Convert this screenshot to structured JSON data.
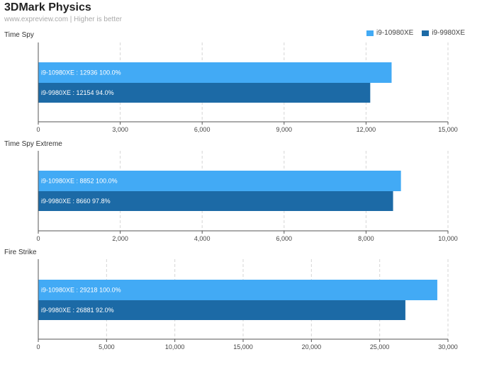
{
  "header": {
    "title": "3DMark Physics",
    "subtitle": "www.expreview.com | Higher is better"
  },
  "colors": {
    "series1": "#42aaf5",
    "series2": "#1c6aa6",
    "grid": "#d6d6d6",
    "axis": "#555555"
  },
  "legend": [
    {
      "label": "i9-10980XE",
      "color": "#42aaf5"
    },
    {
      "label": "i9-9980XE",
      "color": "#1c6aa6"
    }
  ],
  "chart_data": [
    {
      "type": "bar",
      "orientation": "horizontal",
      "title": "Time Spy",
      "xlim": [
        0,
        15000
      ],
      "ticks": [
        "0",
        "3,000",
        "6,000",
        "9,000",
        "12,000",
        "15,000"
      ],
      "tick_values": [
        0,
        3000,
        6000,
        9000,
        12000,
        15000
      ],
      "series": [
        {
          "name": "i9-10980XE",
          "value": 12936,
          "label": "i9-10980XE : 12936  100.0%"
        },
        {
          "name": "i9-9980XE",
          "value": 12154,
          "label": "i9-9980XE : 12154  94.0%"
        }
      ]
    },
    {
      "type": "bar",
      "orientation": "horizontal",
      "title": "Time Spy Extreme",
      "xlim": [
        0,
        10000
      ],
      "ticks": [
        "0",
        "2,000",
        "4,000",
        "6,000",
        "8,000",
        "10,000"
      ],
      "tick_values": [
        0,
        2000,
        4000,
        6000,
        8000,
        10000
      ],
      "series": [
        {
          "name": "i9-10980XE",
          "value": 8852,
          "label": "i9-10980XE : 8852  100.0%"
        },
        {
          "name": "i9-9980XE",
          "value": 8660,
          "label": "i9-9980XE : 8660  97.8%"
        }
      ]
    },
    {
      "type": "bar",
      "orientation": "horizontal",
      "title": "Fire Strike",
      "xlim": [
        0,
        30000
      ],
      "ticks": [
        "0",
        "5,000",
        "10,000",
        "15,000",
        "20,000",
        "25,000",
        "30,000"
      ],
      "tick_values": [
        0,
        5000,
        10000,
        15000,
        20000,
        25000,
        30000
      ],
      "series": [
        {
          "name": "i9-10980XE",
          "value": 29218,
          "label": "i9-10980XE : 29218  100.0%"
        },
        {
          "name": "i9-9980XE",
          "value": 26881,
          "label": "i9-9980XE : 26881  92.0%"
        }
      ]
    }
  ]
}
